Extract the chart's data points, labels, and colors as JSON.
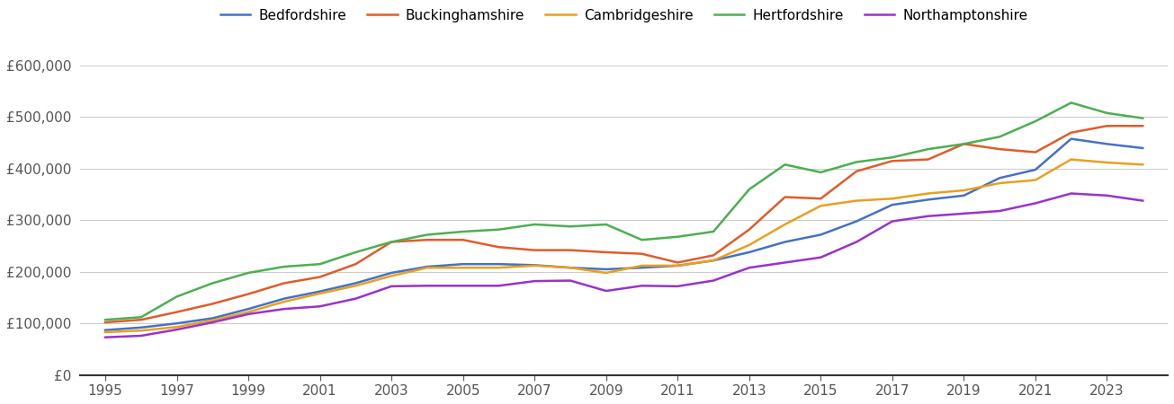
{
  "years": [
    1995,
    1996,
    1997,
    1998,
    1999,
    2000,
    2001,
    2002,
    2003,
    2004,
    2005,
    2006,
    2007,
    2008,
    2009,
    2010,
    2011,
    2012,
    2013,
    2014,
    2015,
    2016,
    2017,
    2018,
    2019,
    2020,
    2021,
    2022,
    2023,
    2024
  ],
  "series": {
    "Bedfordshire": [
      87000,
      92000,
      100000,
      110000,
      128000,
      148000,
      162000,
      178000,
      198000,
      210000,
      215000,
      215000,
      213000,
      208000,
      205000,
      208000,
      212000,
      222000,
      238000,
      258000,
      272000,
      298000,
      330000,
      340000,
      348000,
      382000,
      398000,
      458000,
      448000,
      440000
    ],
    "Buckinghamshire": [
      102000,
      107000,
      122000,
      138000,
      157000,
      178000,
      190000,
      215000,
      258000,
      262000,
      262000,
      248000,
      242000,
      242000,
      238000,
      235000,
      218000,
      232000,
      282000,
      345000,
      342000,
      395000,
      415000,
      418000,
      448000,
      438000,
      432000,
      470000,
      483000,
      483000
    ],
    "Cambridgeshire": [
      83000,
      86000,
      93000,
      106000,
      122000,
      142000,
      158000,
      173000,
      192000,
      208000,
      208000,
      208000,
      212000,
      208000,
      198000,
      212000,
      212000,
      222000,
      252000,
      292000,
      328000,
      338000,
      342000,
      352000,
      358000,
      372000,
      378000,
      418000,
      412000,
      408000
    ],
    "Hertfordshire": [
      107000,
      112000,
      152000,
      178000,
      198000,
      210000,
      215000,
      238000,
      258000,
      272000,
      278000,
      282000,
      292000,
      288000,
      292000,
      262000,
      268000,
      278000,
      360000,
      408000,
      393000,
      413000,
      422000,
      438000,
      448000,
      462000,
      492000,
      528000,
      508000,
      498000
    ],
    "Northamptonshire": [
      73000,
      76000,
      88000,
      102000,
      118000,
      128000,
      133000,
      148000,
      172000,
      173000,
      173000,
      173000,
      182000,
      183000,
      163000,
      173000,
      172000,
      183000,
      208000,
      218000,
      228000,
      258000,
      298000,
      308000,
      313000,
      318000,
      333000,
      352000,
      348000,
      338000
    ]
  },
  "colors": {
    "Bedfordshire": "#4472C4",
    "Buckinghamshire": "#E05C2A",
    "Cambridgeshire": "#E8A020",
    "Hertfordshire": "#4CAF50",
    "Northamptonshire": "#9932CC"
  },
  "ylim": [
    0,
    650000
  ],
  "yticks": [
    0,
    100000,
    200000,
    300000,
    400000,
    500000,
    600000
  ],
  "ytick_labels": [
    "£0",
    "£100,000",
    "£200,000",
    "£300,000",
    "£400,000",
    "£500,000",
    "£600,000"
  ],
  "xtick_years": [
    1995,
    1997,
    1999,
    2001,
    2003,
    2005,
    2007,
    2009,
    2011,
    2013,
    2015,
    2017,
    2019,
    2021,
    2023
  ],
  "xlim_left": 1994.3,
  "xlim_right": 2024.7,
  "bg_color": "#ffffff",
  "grid_color": "#cccccc",
  "line_width": 1.8
}
